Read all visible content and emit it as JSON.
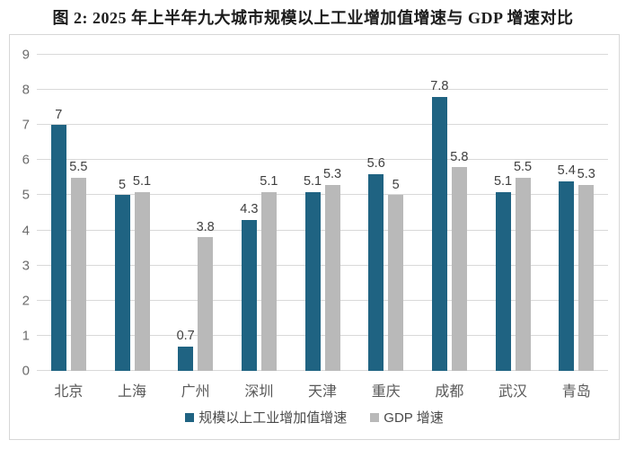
{
  "title": "图 2: 2025 年上半年九大城市规模以上工业增加值增速与 GDP 增速对比",
  "colors": {
    "industrial_bar": "#1F6382",
    "gdp_bar": "#B9B9B9",
    "gridline": "#D9D9D9",
    "axis_text": "#6B6B6B",
    "value_label_text": "#3F3F3F",
    "card_border": "#D7D7D7"
  },
  "chart_data": {
    "type": "bar",
    "title": "图 2: 2025 年上半年九大城市规模以上工业增加值增速与 GDP 增速对比",
    "categories": [
      "北京",
      "上海",
      "广州",
      "深圳",
      "天津",
      "重庆",
      "成都",
      "武汉",
      "青岛"
    ],
    "series": [
      {
        "name": "规模以上工业增加值增速",
        "color": "#1F6382",
        "values": [
          7,
          5,
          0.7,
          4.3,
          5.1,
          5.6,
          7.8,
          5.1,
          5.4
        ]
      },
      {
        "name": "GDP 增速",
        "color": "#B9B9B9",
        "values": [
          5.5,
          5.1,
          3.8,
          5.1,
          5.3,
          5,
          5.8,
          5.5,
          5.3
        ]
      }
    ],
    "xlabel": "",
    "ylabel": "",
    "ylim": [
      0,
      9
    ],
    "ytick_step": 1,
    "yticks": [
      0,
      1,
      2,
      3,
      4,
      5,
      6,
      7,
      8,
      9
    ],
    "grid": true,
    "data_labels": true,
    "legend_position": "bottom"
  }
}
